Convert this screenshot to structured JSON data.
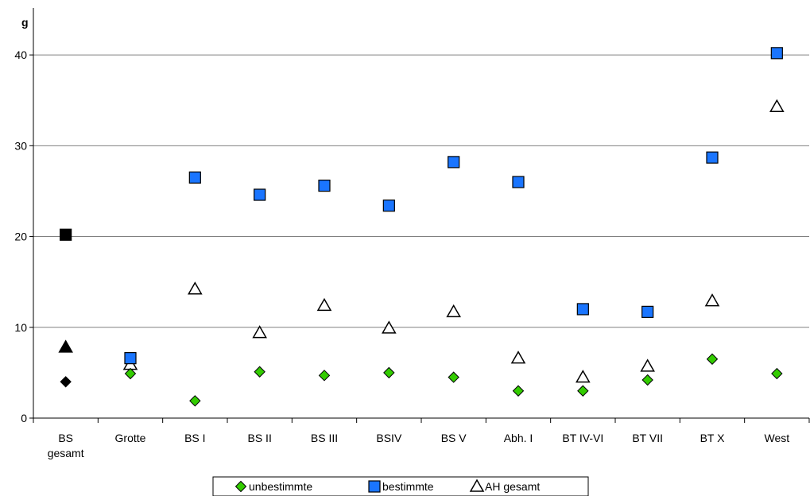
{
  "chart_data": {
    "type": "scatter",
    "ylabel": "g",
    "ylim": [
      0,
      45
    ],
    "yticks": [
      "0",
      "10",
      "20",
      "30",
      "40"
    ],
    "grid": true,
    "legend_position": "bottom",
    "categories": [
      [
        "BS",
        "gesamt"
      ],
      [
        "Grotte"
      ],
      [
        "BS I"
      ],
      [
        "BS II"
      ],
      [
        "BS III"
      ],
      [
        "BSIV"
      ],
      [
        "BS V"
      ],
      [
        "Abh. I"
      ],
      [
        "BT IV-VI"
      ],
      [
        "BT VII"
      ],
      [
        "BT X"
      ],
      [
        "West"
      ]
    ],
    "series": [
      {
        "name": "unbestimmte",
        "marker": "diamond",
        "color": "#33cc00",
        "first_point_color": "#000000",
        "values": [
          4.0,
          4.9,
          1.9,
          5.1,
          4.7,
          5.0,
          4.5,
          3.0,
          3.0,
          4.2,
          6.5,
          4.9
        ]
      },
      {
        "name": "bestimmte",
        "marker": "square",
        "color": "#1a75ff",
        "first_point_color": "#000000",
        "values": [
          20.2,
          6.6,
          26.5,
          24.6,
          25.6,
          23.4,
          28.2,
          26.0,
          12.0,
          11.7,
          28.7,
          40.2
        ]
      },
      {
        "name": "AH gesamt",
        "marker": "triangle",
        "color": "#ffffff",
        "first_point_color": "#000000",
        "values": [
          7.8,
          5.9,
          14.2,
          9.4,
          12.4,
          9.9,
          11.7,
          6.6,
          4.5,
          5.7,
          12.9,
          34.3
        ]
      }
    ]
  }
}
